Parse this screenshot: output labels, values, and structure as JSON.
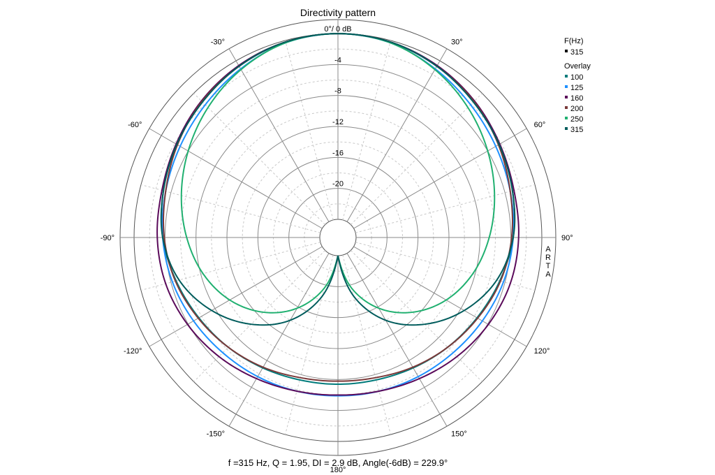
{
  "title": "Directivity pattern",
  "footer": "f =315 Hz,  Q =  1.95,  DI =   2.9 dB, Angle(-6dB) = 229.9°",
  "watermark": "ARTA",
  "legend": {
    "f_header": "F(Hz)",
    "f_value": "315",
    "f_color": "#000000",
    "overlay_header": "Overlay"
  },
  "chart_data": {
    "type": "polar",
    "title": "Directivity pattern",
    "radial_unit": "dB",
    "radial_range": [
      -24,
      0
    ],
    "radial_ticks": [
      {
        "value": 0,
        "label": "0°/ 0 dB"
      },
      {
        "value": -4,
        "label": "-4"
      },
      {
        "value": -8,
        "label": "-8"
      },
      {
        "value": -12,
        "label": "-12"
      },
      {
        "value": -16,
        "label": "-16"
      },
      {
        "value": -20,
        "label": "-20"
      }
    ],
    "angle_labels": [
      {
        "angle": 30,
        "label": "30°"
      },
      {
        "angle": 60,
        "label": "60°"
      },
      {
        "angle": 90,
        "label": "90°"
      },
      {
        "angle": 120,
        "label": "120°"
      },
      {
        "angle": 150,
        "label": "150°"
      },
      {
        "angle": 180,
        "label": "180°"
      },
      {
        "angle": -150,
        "label": "-150°"
      },
      {
        "angle": -120,
        "label": "-120°"
      },
      {
        "angle": -90,
        "label": "-90°"
      },
      {
        "angle": -60,
        "label": "-60°"
      },
      {
        "angle": -30,
        "label": "-30°"
      }
    ],
    "angles": [
      0,
      15,
      30,
      45,
      60,
      75,
      90,
      105,
      120,
      135,
      150,
      165,
      180
    ],
    "series": [
      {
        "name": "100",
        "color": "#007b7b",
        "values": [
          0,
          -0.2,
          -0.8,
          -1.5,
          -2.3,
          -3.0,
          -3.7,
          -4.7,
          -5.6,
          -6.3,
          -6.9,
          -7.3,
          -7.4
        ]
      },
      {
        "name": "125",
        "color": "#1e90ff",
        "values": [
          0,
          -0.3,
          -1.2,
          -2.1,
          -2.8,
          -3.3,
          -3.7,
          -4.2,
          -4.8,
          -5.3,
          -5.6,
          -5.8,
          -5.9
        ]
      },
      {
        "name": "160",
        "color": "#5a0a5a",
        "values": [
          0,
          -0.2,
          -0.7,
          -1.4,
          -2.2,
          -2.8,
          -3.0,
          -3.3,
          -3.9,
          -4.6,
          -5.3,
          -5.8,
          -6.0
        ]
      },
      {
        "name": "200",
        "color": "#7a3a3a",
        "values": [
          0,
          -0.2,
          -0.8,
          -1.5,
          -2.4,
          -3.3,
          -3.9,
          -4.6,
          -5.5,
          -6.3,
          -7.0,
          -7.6,
          -7.8
        ]
      },
      {
        "name": "250",
        "color": "#20b070",
        "values": [
          0,
          -0.3,
          -1.3,
          -2.6,
          -4.0,
          -5.4,
          -6.8,
          -8.3,
          -10.2,
          -12.7,
          -15.8,
          -19.6,
          -24.0
        ]
      },
      {
        "name": "315",
        "color": "#005c5c",
        "values": [
          0,
          -0.2,
          -0.8,
          -1.6,
          -2.3,
          -3.0,
          -3.7,
          -5.1,
          -7.5,
          -10.5,
          -14.0,
          -18.5,
          -24.0
        ]
      }
    ],
    "grid": true,
    "legend_position": "top-right"
  }
}
